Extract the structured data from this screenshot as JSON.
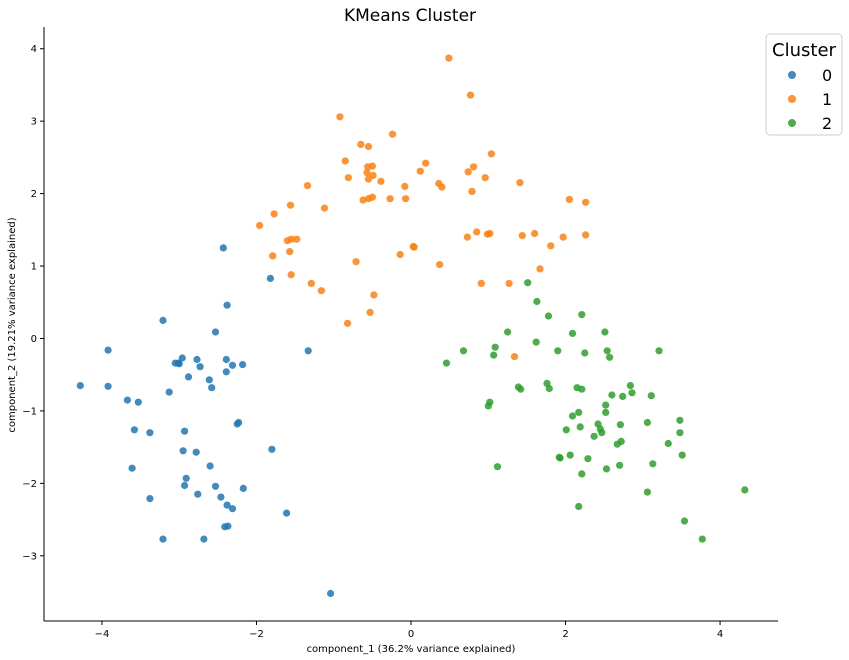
{
  "chart_data": {
    "type": "scatter",
    "title": "KMeans Cluster",
    "xlabel": "component_1 (36.2% variance explained)",
    "ylabel": "component_2 (19.21% variance explained)",
    "xlim": [
      -4.75,
      4.75
    ],
    "ylim": [
      -3.9,
      4.3
    ],
    "xticks": [
      -4,
      -2,
      0,
      2,
      4
    ],
    "yticks": [
      -3,
      -2,
      -1,
      0,
      1,
      2,
      3,
      4
    ],
    "xtick_labels": [
      "−4",
      "−2",
      "0",
      "2",
      "4"
    ],
    "ytick_labels": [
      "−3",
      "−2",
      "−1",
      "0",
      "1",
      "2",
      "3",
      "4"
    ],
    "grid": false,
    "legend": {
      "title": "Cluster",
      "placement": "top-right"
    },
    "series": [
      {
        "name": "0",
        "color": "#1f77b4",
        "points": [
          [
            -2.43,
            1.25
          ],
          [
            -1.82,
            0.83
          ],
          [
            -2.38,
            0.46
          ],
          [
            -3.21,
            0.25
          ],
          [
            -2.53,
            0.09
          ],
          [
            -3.92,
            -0.16
          ],
          [
            -1.33,
            -0.17
          ],
          [
            -3.05,
            -0.34
          ],
          [
            -2.96,
            -0.27
          ],
          [
            -3.01,
            -0.34
          ],
          [
            -2.77,
            -0.29
          ],
          [
            -2.39,
            -0.29
          ],
          [
            -2.18,
            -0.36
          ],
          [
            -2.31,
            -0.37
          ],
          [
            -2.73,
            -0.39
          ],
          [
            -2.39,
            -0.46
          ],
          [
            -3.13,
            -0.74
          ],
          [
            -2.88,
            -0.53
          ],
          [
            -2.61,
            -0.57
          ],
          [
            -2.58,
            -0.68
          ],
          [
            -4.28,
            -0.65
          ],
          [
            -3.92,
            -0.66
          ],
          [
            -3.67,
            -0.85
          ],
          [
            -3.53,
            -0.88
          ],
          [
            -2.23,
            -1.16
          ],
          [
            -2.25,
            -1.18
          ],
          [
            -3.58,
            -1.26
          ],
          [
            -3.38,
            -1.3
          ],
          [
            -2.93,
            -1.28
          ],
          [
            -2.95,
            -1.55
          ],
          [
            -2.78,
            -1.57
          ],
          [
            -1.8,
            -1.53
          ],
          [
            -3.61,
            -1.79
          ],
          [
            -2.6,
            -1.76
          ],
          [
            -2.91,
            -1.93
          ],
          [
            -2.93,
            -2.03
          ],
          [
            -2.53,
            -2.04
          ],
          [
            -2.17,
            -2.07
          ],
          [
            -2.76,
            -2.15
          ],
          [
            -2.46,
            -2.19
          ],
          [
            -3.38,
            -2.21
          ],
          [
            -2.38,
            -2.3
          ],
          [
            -2.31,
            -2.35
          ],
          [
            -1.61,
            -2.41
          ],
          [
            -2.41,
            -2.6
          ],
          [
            -2.37,
            -2.59
          ],
          [
            -3.21,
            -2.77
          ],
          [
            -2.68,
            -2.77
          ],
          [
            -1.04,
            -3.52
          ],
          [
            -3.0,
            -0.35
          ]
        ]
      },
      {
        "name": "1",
        "color": "#ff7f0e",
        "points": [
          [
            0.49,
            3.87
          ],
          [
            0.77,
            3.36
          ],
          [
            -0.92,
            3.06
          ],
          [
            -0.24,
            2.82
          ],
          [
            -0.65,
            2.68
          ],
          [
            -0.55,
            2.65
          ],
          [
            1.04,
            2.55
          ],
          [
            -0.85,
            2.45
          ],
          [
            0.19,
            2.42
          ],
          [
            -0.56,
            2.37
          ],
          [
            -0.5,
            2.38
          ],
          [
            0.81,
            2.37
          ],
          [
            -0.57,
            2.29
          ],
          [
            0.12,
            2.31
          ],
          [
            0.74,
            2.3
          ],
          [
            -0.49,
            2.25
          ],
          [
            -0.81,
            2.22
          ],
          [
            0.96,
            2.22
          ],
          [
            -0.55,
            2.2
          ],
          [
            -0.39,
            2.17
          ],
          [
            1.41,
            2.15
          ],
          [
            0.36,
            2.14
          ],
          [
            -1.34,
            2.11
          ],
          [
            0.4,
            2.09
          ],
          [
            -0.08,
            2.1
          ],
          [
            0.79,
            2.03
          ],
          [
            -0.5,
            1.95
          ],
          [
            -0.55,
            1.93
          ],
          [
            -0.27,
            1.93
          ],
          [
            -0.07,
            1.93
          ],
          [
            2.05,
            1.92
          ],
          [
            2.26,
            1.88
          ],
          [
            -1.56,
            1.84
          ],
          [
            -1.12,
            1.8
          ],
          [
            -1.77,
            1.72
          ],
          [
            -0.62,
            1.91
          ],
          [
            -1.96,
            1.56
          ],
          [
            1.44,
            1.42
          ],
          [
            1.6,
            1.45
          ],
          [
            0.73,
            1.4
          ],
          [
            0.85,
            1.47
          ],
          [
            1.02,
            1.45
          ],
          [
            0.99,
            1.44
          ],
          [
            1.97,
            1.4
          ],
          [
            2.26,
            1.43
          ],
          [
            -1.48,
            1.37
          ],
          [
            -1.6,
            1.35
          ],
          [
            -1.55,
            1.37
          ],
          [
            1.81,
            1.28
          ],
          [
            0.03,
            1.27
          ],
          [
            0.04,
            1.26
          ],
          [
            -1.79,
            1.14
          ],
          [
            -0.14,
            1.16
          ],
          [
            -1.57,
            1.2
          ],
          [
            -0.71,
            1.06
          ],
          [
            0.37,
            1.02
          ],
          [
            1.67,
            0.96
          ],
          [
            -1.55,
            0.88
          ],
          [
            -1.29,
            0.76
          ],
          [
            -1.16,
            0.66
          ],
          [
            0.91,
            0.76
          ],
          [
            1.27,
            0.76
          ],
          [
            -0.48,
            0.6
          ],
          [
            -0.53,
            0.36
          ],
          [
            -0.82,
            0.21
          ],
          [
            1.34,
            -0.25
          ]
        ]
      },
      {
        "name": "2",
        "color": "#2ca02c",
        "points": [
          [
            1.51,
            0.77
          ],
          [
            1.63,
            0.51
          ],
          [
            1.78,
            0.31
          ],
          [
            2.21,
            0.33
          ],
          [
            1.25,
            0.09
          ],
          [
            2.51,
            0.09
          ],
          [
            2.09,
            0.07
          ],
          [
            1.62,
            -0.05
          ],
          [
            1.09,
            -0.12
          ],
          [
            0.68,
            -0.17
          ],
          [
            1.9,
            -0.17
          ],
          [
            2.54,
            -0.17
          ],
          [
            2.25,
            -0.2
          ],
          [
            3.21,
            -0.17
          ],
          [
            1.07,
            -0.23
          ],
          [
            2.57,
            -0.26
          ],
          [
            0.46,
            -0.34
          ],
          [
            1.76,
            -0.62
          ],
          [
            1.79,
            -0.69
          ],
          [
            1.39,
            -0.67
          ],
          [
            1.42,
            -0.7
          ],
          [
            2.15,
            -0.68
          ],
          [
            2.21,
            -0.7
          ],
          [
            2.84,
            -0.65
          ],
          [
            2.86,
            -0.75
          ],
          [
            2.6,
            -0.78
          ],
          [
            2.74,
            -0.8
          ],
          [
            3.11,
            -0.79
          ],
          [
            1.02,
            -0.88
          ],
          [
            1.0,
            -0.93
          ],
          [
            2.52,
            -0.92
          ],
          [
            2.17,
            -1.02
          ],
          [
            2.52,
            -1.02
          ],
          [
            2.09,
            -1.07
          ],
          [
            3.06,
            -1.16
          ],
          [
            3.48,
            -1.13
          ],
          [
            2.42,
            -1.18
          ],
          [
            2.71,
            -1.19
          ],
          [
            2.19,
            -1.22
          ],
          [
            2.01,
            -1.26
          ],
          [
            2.45,
            -1.25
          ],
          [
            2.47,
            -1.3
          ],
          [
            3.48,
            -1.3
          ],
          [
            2.37,
            -1.35
          ],
          [
            2.72,
            -1.42
          ],
          [
            2.67,
            -1.46
          ],
          [
            3.33,
            -1.45
          ],
          [
            1.92,
            -1.64
          ],
          [
            1.93,
            -1.65
          ],
          [
            2.06,
            -1.61
          ],
          [
            3.51,
            -1.61
          ],
          [
            2.29,
            -1.66
          ],
          [
            3.13,
            -1.73
          ],
          [
            2.7,
            -1.75
          ],
          [
            1.12,
            -1.77
          ],
          [
            2.53,
            -1.8
          ],
          [
            2.21,
            -1.87
          ],
          [
            4.32,
            -2.09
          ],
          [
            3.06,
            -2.12
          ],
          [
            2.17,
            -2.32
          ],
          [
            3.54,
            -2.52
          ],
          [
            3.77,
            -2.77
          ]
        ]
      }
    ]
  }
}
